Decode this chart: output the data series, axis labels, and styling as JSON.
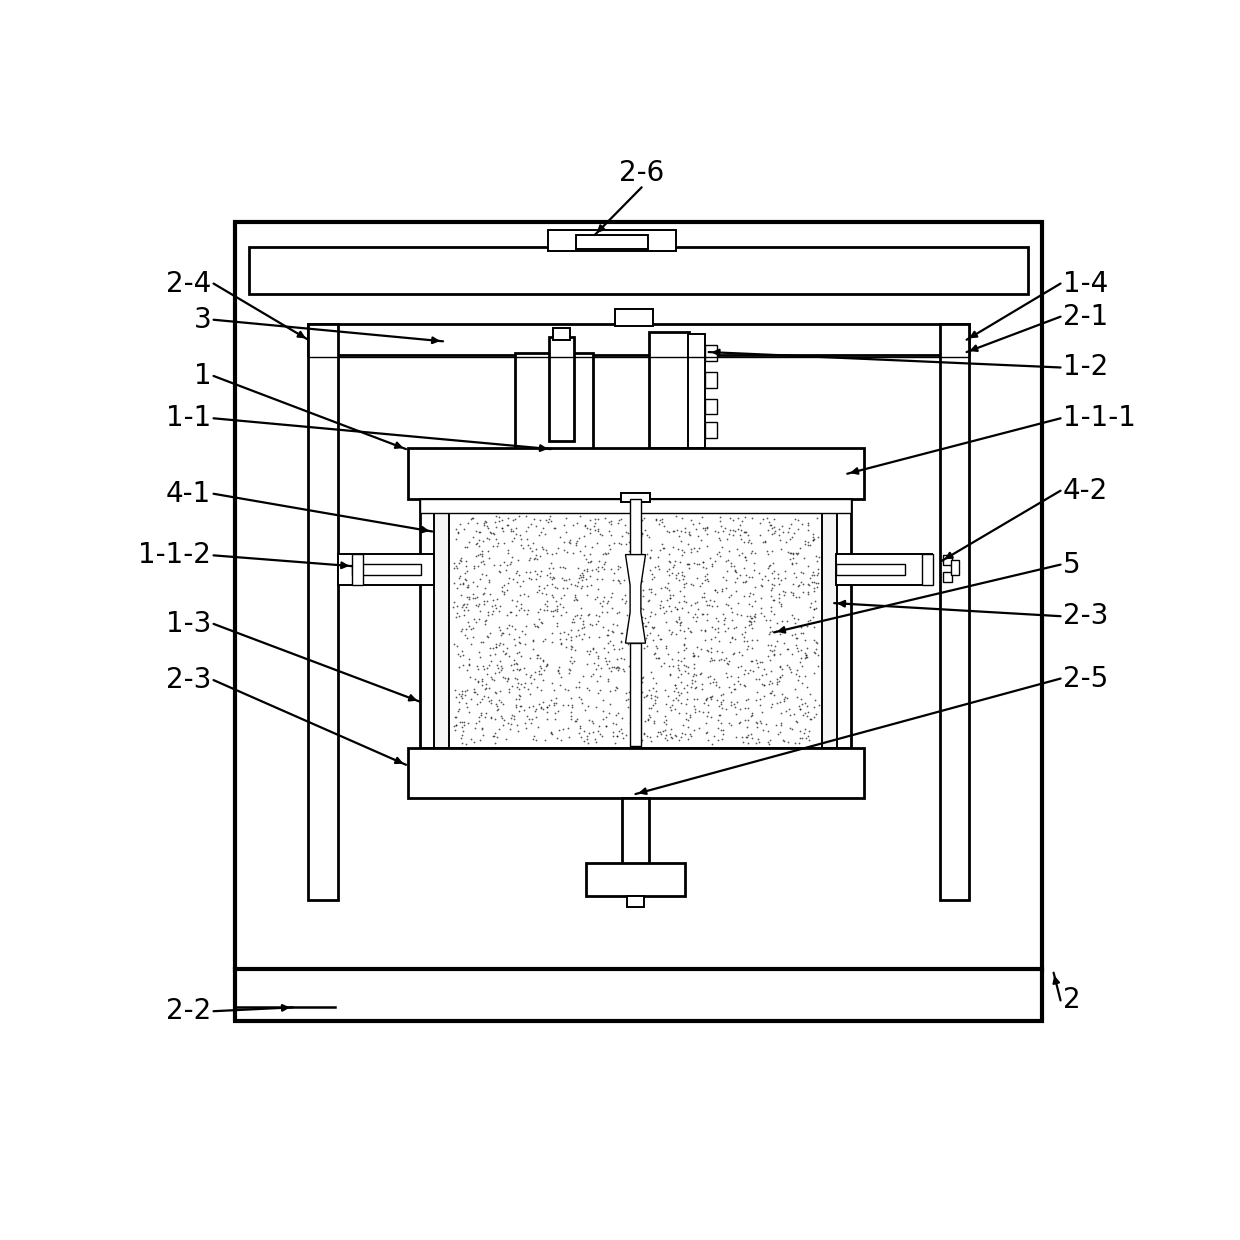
{
  "bg": "#ffffff",
  "lc": "#000000",
  "fw": 12.4,
  "fh": 12.4,
  "dpi": 100,
  "annotations": [
    [
      "2-6",
      628,
      50,
      567,
      112,
      "center"
    ],
    [
      "2-4",
      72,
      175,
      195,
      248,
      "right"
    ],
    [
      "3",
      72,
      222,
      370,
      250,
      "right"
    ],
    [
      "1-4",
      1172,
      175,
      1050,
      248,
      "left"
    ],
    [
      "2-1",
      1172,
      218,
      1050,
      264,
      "left"
    ],
    [
      "1",
      72,
      295,
      322,
      390,
      "right"
    ],
    [
      "1-2",
      1172,
      284,
      715,
      264,
      "left"
    ],
    [
      "1-1",
      72,
      350,
      510,
      390,
      "right"
    ],
    [
      "1-1-1",
      1172,
      350,
      895,
      422,
      "left"
    ],
    [
      "4-1",
      72,
      448,
      356,
      497,
      "right"
    ],
    [
      "4-2",
      1172,
      444,
      1018,
      535,
      "left"
    ],
    [
      "1-1-2",
      72,
      528,
      252,
      542,
      "right"
    ],
    [
      "5",
      1172,
      540,
      800,
      628,
      "left"
    ],
    [
      "1-3",
      72,
      617,
      340,
      718,
      "right"
    ],
    [
      "2-3",
      1172,
      607,
      878,
      590,
      "left"
    ],
    [
      "2-3",
      72,
      690,
      322,
      800,
      "right"
    ],
    [
      "2-5",
      1172,
      688,
      620,
      838,
      "left"
    ],
    [
      "2-2",
      72,
      1120,
      175,
      1115,
      "right"
    ],
    [
      "2",
      1172,
      1106,
      1163,
      1070,
      "left"
    ]
  ]
}
